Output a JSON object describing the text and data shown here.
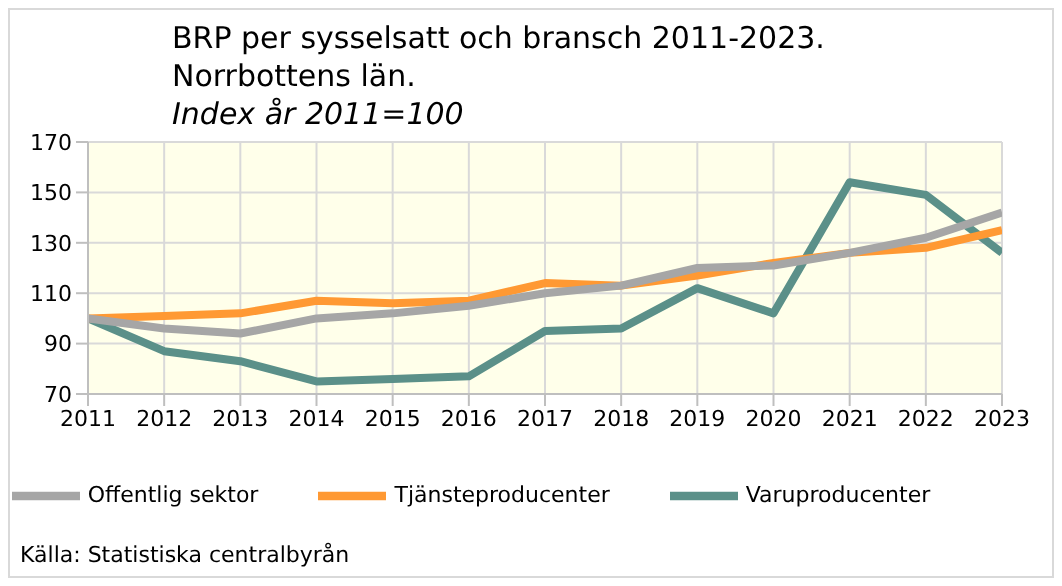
{
  "chart_data": {
    "type": "line",
    "title": "BRP per sysselsatt och bransch 2011-2023.\nNorrbottens län.",
    "subtitle": "Index år 2011=100",
    "x": [
      2011,
      2012,
      2013,
      2014,
      2015,
      2016,
      2017,
      2018,
      2019,
      2020,
      2021,
      2022,
      2023
    ],
    "xlim": [
      2011,
      2023
    ],
    "xticks": [
      2011,
      2012,
      2013,
      2014,
      2015,
      2016,
      2017,
      2018,
      2019,
      2020,
      2021,
      2022,
      2023
    ],
    "ylim": [
      70,
      170
    ],
    "yticks": [
      70,
      90,
      110,
      130,
      150,
      170
    ],
    "grid": true,
    "legend": "bottom",
    "marker": "none",
    "line_style": "solid",
    "series": [
      {
        "name": "Varuproducenter",
        "color": "#5b9089",
        "values": [
          100,
          87,
          83,
          75,
          76,
          77,
          95,
          96,
          112,
          102,
          154,
          149,
          126
        ]
      },
      {
        "name": "Tjänsteproducenter",
        "color": "#ff9933",
        "values": [
          100,
          101,
          102,
          107,
          106,
          107,
          114,
          113,
          117,
          122,
          126,
          128,
          135
        ]
      },
      {
        "name": "Offentlig sektor",
        "color": "#a6a6a6",
        "values": [
          100,
          96,
          94,
          100,
          102,
          105,
          110,
          113,
          120,
          121,
          126,
          132,
          142
        ]
      }
    ],
    "annotations": [
      "Källa: Statistiska centralbyrån"
    ]
  }
}
